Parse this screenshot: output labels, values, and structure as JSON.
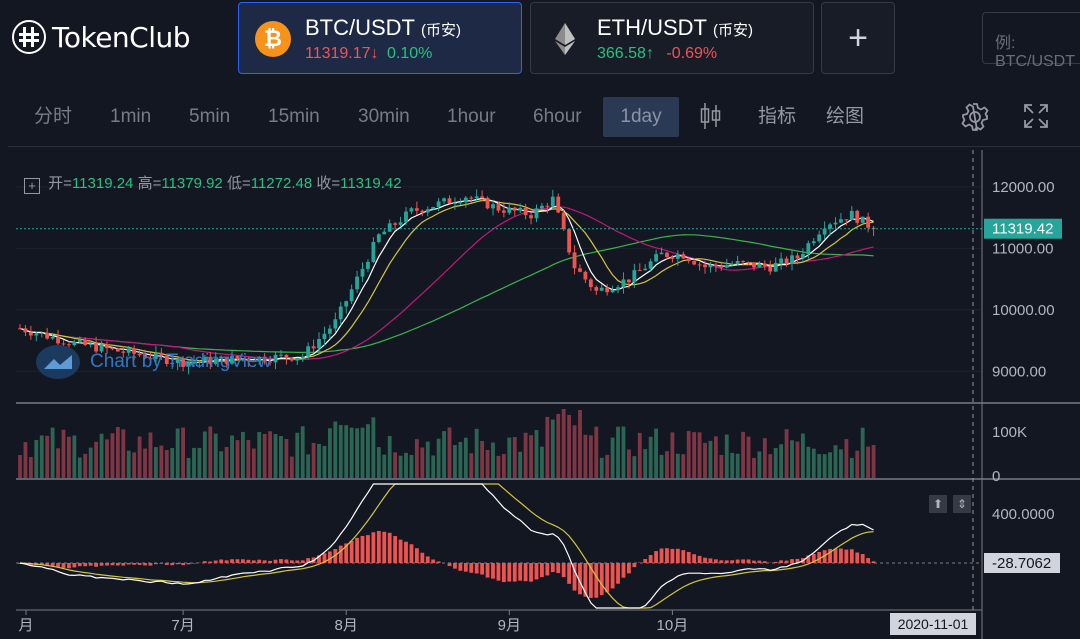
{
  "app": {
    "logo_text": "TokenClub"
  },
  "pairs": [
    {
      "name": "BTC/USDT",
      "exchange": "(币安)",
      "price": "11319.17",
      "price_arrow": "↓",
      "change": "0.10%",
      "price_color": "#f05359",
      "change_color": "#26c281",
      "icon": "bitcoin-icon",
      "icon_glyph": "₿"
    },
    {
      "name": "ETH/USDT",
      "exchange": "(币安)",
      "price": "366.58",
      "price_arrow": "↑",
      "change": "-0.69%",
      "price_color": "#26c281",
      "change_color": "#f05359",
      "icon": "ethereum-icon"
    }
  ],
  "add_button": "+",
  "search": {
    "placeholder": "例: BTC/USDT"
  },
  "toolbar": {
    "intervals": [
      "分时",
      "1min",
      "5min",
      "15min",
      "30min",
      "1hour",
      "6hour",
      "1day"
    ],
    "active_interval": "1day",
    "indicators_label": "指标",
    "draw_label": "绘图",
    "icons": [
      "candlestick-icon",
      "settings-gear-icon",
      "fullscreen-icon"
    ]
  },
  "ohlc": {
    "open_label": "开=",
    "open": "11319.24",
    "high_label": "高=",
    "high": "11379.92",
    "low_label": "低=",
    "low": "11272.48",
    "close_label": "收=",
    "close": "11319.42"
  },
  "watermark": "Chart by TradingView",
  "chart_data": {
    "type": "candlestick",
    "symbol": "BTC/USDT",
    "timeframe": "1day",
    "price_axis": {
      "ticks": [
        "12000.00",
        "11000.00",
        "10000.00",
        "9000.00"
      ],
      "values": [
        12000,
        11000,
        10000,
        9000
      ],
      "range": [
        8500,
        12600
      ]
    },
    "last_price_label": "11319.42",
    "last_price": 11319.42,
    "volume_axis": {
      "ticks": [
        "100K",
        "0"
      ]
    },
    "macd_axis": {
      "ticks": [
        "400.0000"
      ],
      "current_label": "-28.7062"
    },
    "time_axis": {
      "ticks": [
        "月",
        "7月",
        "8月",
        "9月",
        "10月"
      ],
      "cursor_label": "2020-11-01"
    },
    "price_anchors": [
      [
        0,
        9700
      ],
      [
        10,
        9450
      ],
      [
        20,
        9300
      ],
      [
        30,
        9150
      ],
      [
        40,
        9200
      ],
      [
        52,
        9250
      ],
      [
        58,
        9800
      ],
      [
        62,
        10500
      ],
      [
        66,
        11200
      ],
      [
        72,
        11600
      ],
      [
        78,
        11750
      ],
      [
        82,
        11850
      ],
      [
        88,
        11650
      ],
      [
        94,
        11550
      ],
      [
        98,
        11800
      ],
      [
        102,
        10700
      ],
      [
        106,
        10300
      ],
      [
        112,
        10500
      ],
      [
        118,
        10900
      ],
      [
        122,
        10900
      ],
      [
        126,
        10700
      ],
      [
        132,
        10750
      ],
      [
        138,
        10700
      ],
      [
        143,
        10850
      ],
      [
        148,
        11400
      ],
      [
        153,
        11550
      ],
      [
        157,
        11320
      ]
    ],
    "ma_colors": {
      "ma5": "#ffffff",
      "ma10": "#d4c63a",
      "ma30": "#c2187a",
      "ma60": "#3bb44a"
    },
    "up_color": "#26a69a",
    "down_color": "#ef5350"
  },
  "colors": {
    "accent": "#2962ff",
    "up": "#26a69a",
    "down": "#ef5350"
  }
}
